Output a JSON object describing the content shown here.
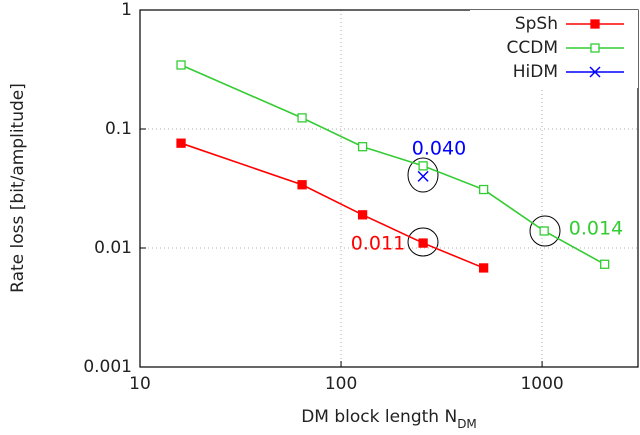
{
  "chart_data": {
    "type": "line",
    "x_label": "DM block length N",
    "x_label_subscript": "DM",
    "y_label": "Rate loss [bit/amplitude]",
    "log_x": true,
    "log_y": true,
    "grid": true,
    "legend": "top-right",
    "xlim": [
      10,
      3000
    ],
    "xticks": [
      10,
      100,
      1000
    ],
    "ylim": [
      0.001,
      1
    ],
    "yticks": [
      0.001,
      0.01,
      0.1,
      1
    ],
    "series": [
      {
        "name": "SpSh",
        "color": "#ff0000",
        "marker": "filled-square",
        "x": [
          16,
          64,
          128,
          256,
          512
        ],
        "values": [
          0.076,
          0.034,
          0.019,
          0.011,
          0.0068
        ]
      },
      {
        "name": "CCDM",
        "color": "#33cc33",
        "marker": "open-square",
        "x": [
          16,
          64,
          128,
          256,
          512,
          1024,
          2048
        ],
        "values": [
          0.345,
          0.124,
          0.071,
          0.049,
          0.031,
          0.0139,
          0.0073
        ]
      },
      {
        "name": "HiDM",
        "color": "#0000ff",
        "marker": "x",
        "x": [
          256
        ],
        "values": [
          0.04
        ]
      }
    ],
    "annotations": [
      {
        "text": "0.040",
        "color": "#0000ff"
      },
      {
        "text": "0.011",
        "color": "#ff0000"
      },
      {
        "text": "0.014",
        "color": "#33cc33"
      }
    ]
  }
}
